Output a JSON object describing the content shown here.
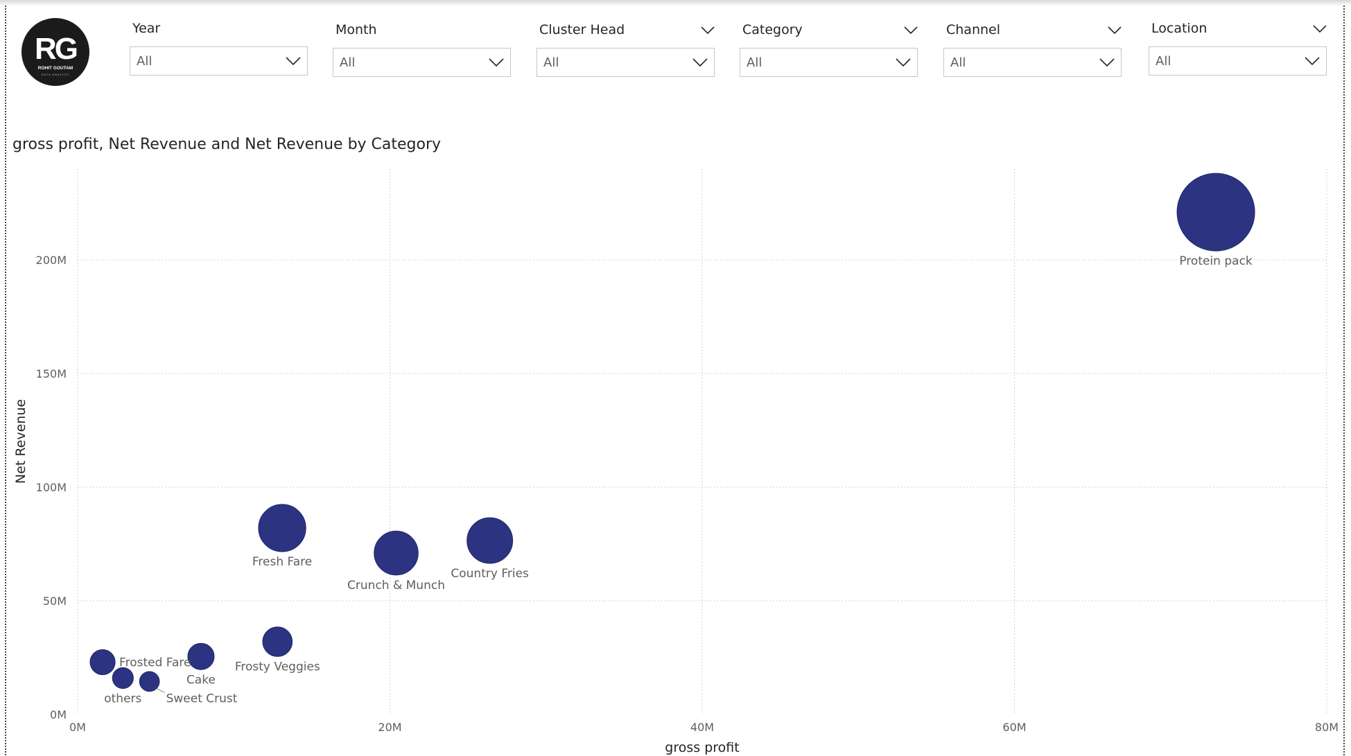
{
  "logo": {
    "monogram": "RG",
    "line1": "ROHIT GOUTAM",
    "line2": "DATA ANALYST"
  },
  "slicers": [
    {
      "label": "Year",
      "value": "All",
      "header_chevron": false
    },
    {
      "label": "Month",
      "value": "All",
      "header_chevron": false
    },
    {
      "label": "Cluster Head",
      "value": "All",
      "header_chevron": true
    },
    {
      "label": "Category",
      "value": "All",
      "header_chevron": true
    },
    {
      "label": "Channel",
      "value": "All",
      "header_chevron": true
    },
    {
      "label": "Location",
      "value": "All",
      "header_chevron": true
    }
  ],
  "chart_data": {
    "type": "scatter",
    "title": "gross profit, Net Revenue and Net Revenue by Category",
    "xlabel": "gross profit",
    "ylabel": "Net Revenue",
    "xlim": [
      0,
      80
    ],
    "ylim": [
      0,
      240
    ],
    "x_ticks": [
      "0M",
      "20M",
      "40M",
      "60M",
      "80M"
    ],
    "y_ticks": [
      "0M",
      "50M",
      "100M",
      "150M",
      "200M"
    ],
    "grid": true,
    "bubble_color": "#2c3482",
    "points": [
      {
        "label": "Protein pack",
        "x": 72.9,
        "y": 221,
        "size": 221
      },
      {
        "label": "Fresh Fare",
        "x": 13.1,
        "y": 82,
        "size": 82
      },
      {
        "label": "Crunch & Munch",
        "x": 20.4,
        "y": 71,
        "size": 71
      },
      {
        "label": "Country Fries",
        "x": 26.4,
        "y": 76.5,
        "size": 76.5
      },
      {
        "label": "Frosty Veggies",
        "x": 12.8,
        "y": 32,
        "size": 32
      },
      {
        "label": "Cake",
        "x": 7.9,
        "y": 25.5,
        "size": 25.5
      },
      {
        "label": "Frosted Fare",
        "x": 1.6,
        "y": 23,
        "size": 23
      },
      {
        "label": "others",
        "x": 2.9,
        "y": 16,
        "size": 16
      },
      {
        "label": "Sweet Crust",
        "x": 4.6,
        "y": 14.5,
        "size": 14.5
      }
    ]
  }
}
